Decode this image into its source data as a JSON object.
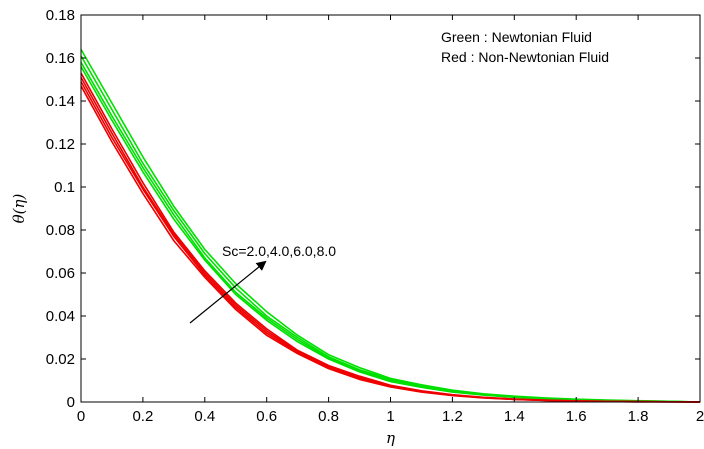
{
  "chart_data": {
    "type": "line",
    "xlabel": "η",
    "ylabel": "θ(η)",
    "xlim": [
      0,
      2
    ],
    "ylim": [
      0,
      0.18
    ],
    "xticks": [
      "0",
      "0.2",
      "0.4",
      "0.6",
      "0.8",
      "1",
      "1.2",
      "1.4",
      "1.6",
      "1.8",
      "2"
    ],
    "yticks": [
      "0",
      "0.02",
      "0.04",
      "0.06",
      "0.08",
      "0.1",
      "0.12",
      "0.14",
      "0.16",
      "0.18"
    ],
    "grid": false,
    "legend_lines": [
      "Green : Newtonian Fluid",
      "Red : Non-Newtonian Fluid"
    ],
    "legend_placement": "top-right",
    "annotation": "Sc=2.0,4.0,6.0,8.0",
    "annotation_arrow": {
      "from": [
        0.5,
        0.035
      ],
      "to": [
        0.8,
        0.064
      ]
    },
    "x": [
      0,
      0.1,
      0.2,
      0.3,
      0.4,
      0.5,
      0.6,
      0.7,
      0.8,
      0.9,
      1.0,
      1.1,
      1.2,
      1.3,
      1.4,
      1.5,
      1.6,
      1.7,
      1.8,
      1.9,
      2.0
    ],
    "series": [
      {
        "fluid": "Newtonian",
        "color": "#00e000",
        "values": [
          0.164,
          0.139,
          0.114,
          0.091,
          0.071,
          0.055,
          0.042,
          0.031,
          0.022,
          0.016,
          0.011,
          0.008,
          0.0055,
          0.0038,
          0.0027,
          0.0019,
          0.0013,
          0.0009,
          0.0006,
          0.0003,
          0.0
        ]
      },
      {
        "fluid": "Newtonian",
        "color": "#00e000",
        "values": [
          0.161,
          0.136,
          0.111,
          0.089,
          0.069,
          0.053,
          0.04,
          0.03,
          0.021,
          0.015,
          0.0105,
          0.0075,
          0.0052,
          0.0036,
          0.0025,
          0.0017,
          0.0012,
          0.0008,
          0.0005,
          0.0003,
          0.0
        ]
      },
      {
        "fluid": "Newtonian",
        "color": "#00e000",
        "values": [
          0.158,
          0.133,
          0.109,
          0.087,
          0.067,
          0.051,
          0.039,
          0.029,
          0.0205,
          0.0145,
          0.01,
          0.0072,
          0.0049,
          0.0034,
          0.0023,
          0.0016,
          0.0011,
          0.0007,
          0.0004,
          0.0002,
          0.0
        ]
      },
      {
        "fluid": "Newtonian",
        "color": "#00e000",
        "values": [
          0.156,
          0.131,
          0.107,
          0.085,
          0.066,
          0.05,
          0.038,
          0.028,
          0.02,
          0.014,
          0.0095,
          0.0068,
          0.0046,
          0.0032,
          0.0022,
          0.0015,
          0.001,
          0.0006,
          0.0004,
          0.0002,
          0.0
        ]
      },
      {
        "fluid": "Non-Newtonian",
        "color": "#ee0000",
        "values": [
          0.153,
          0.127,
          0.102,
          0.079,
          0.061,
          0.046,
          0.034,
          0.024,
          0.017,
          0.012,
          0.0078,
          0.0052,
          0.0034,
          0.0022,
          0.0014,
          0.0009,
          0.0005,
          0.0003,
          0.0002,
          0.0001,
          0.0
        ]
      },
      {
        "fluid": "Non-Newtonian",
        "color": "#ee0000",
        "values": [
          0.151,
          0.125,
          0.1,
          0.078,
          0.06,
          0.045,
          0.033,
          0.0235,
          0.0165,
          0.0115,
          0.0075,
          0.005,
          0.0032,
          0.0021,
          0.0013,
          0.0008,
          0.0005,
          0.0003,
          0.0002,
          0.0001,
          0.0
        ]
      },
      {
        "fluid": "Non-Newtonian",
        "color": "#ee0000",
        "values": [
          0.149,
          0.123,
          0.099,
          0.077,
          0.059,
          0.044,
          0.032,
          0.023,
          0.016,
          0.011,
          0.0072,
          0.0048,
          0.0031,
          0.002,
          0.0012,
          0.0008,
          0.0004,
          0.0002,
          0.0001,
          0.0001,
          0.0
        ]
      },
      {
        "fluid": "Non-Newtonian",
        "color": "#ee0000",
        "values": [
          0.147,
          0.121,
          0.097,
          0.075,
          0.058,
          0.043,
          0.031,
          0.0225,
          0.0155,
          0.0105,
          0.007,
          0.0046,
          0.003,
          0.0019,
          0.0012,
          0.0007,
          0.0004,
          0.0002,
          0.0001,
          0.0001,
          0.0
        ]
      }
    ]
  }
}
